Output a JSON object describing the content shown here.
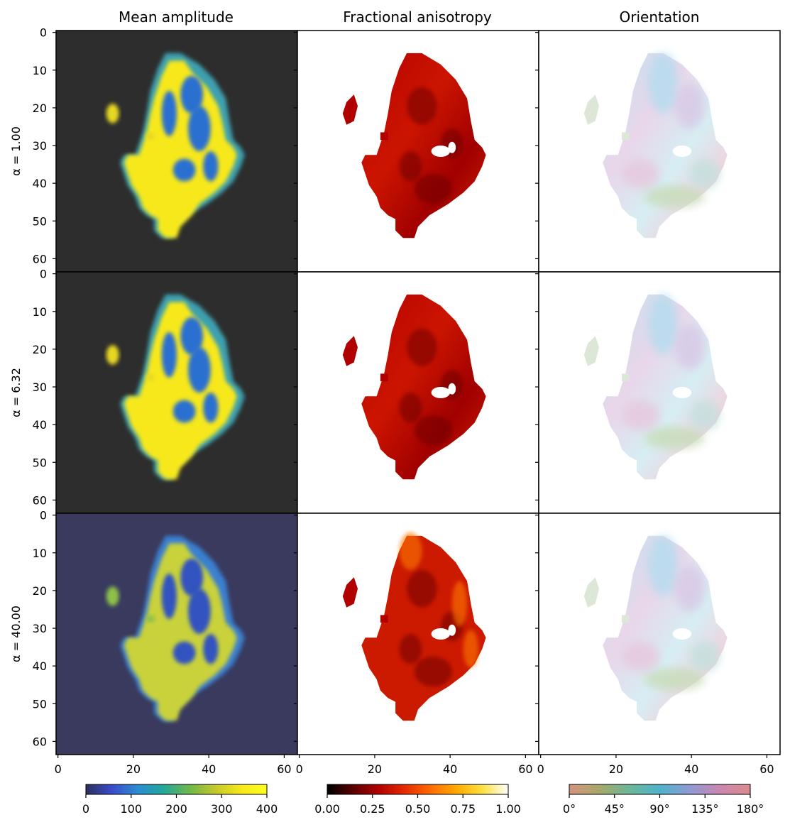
{
  "chart_data": {
    "type": "image-grid",
    "column_titles": [
      "Mean amplitude",
      "Fractional anisotropy",
      "Orientation"
    ],
    "row_labels": [
      "α = 1.00",
      "α = 6.32",
      "α = 40.00"
    ],
    "image_size": [
      64,
      64
    ],
    "x_ticks": [
      0,
      20,
      40,
      60
    ],
    "y_ticks": [
      0,
      10,
      20,
      30,
      40,
      50,
      60
    ],
    "colorbars": [
      {
        "label": "Mean amplitude",
        "range": [
          0,
          400
        ],
        "ticks": [
          "0",
          "100",
          "200",
          "300",
          "400"
        ],
        "stops": [
          "#2b2f5c",
          "#3a4bc9",
          "#2a8cd1",
          "#23a79a",
          "#6cb84a",
          "#c4c82a",
          "#f7e81a",
          "#ffff20"
        ]
      },
      {
        "label": "Fractional anisotropy",
        "range": [
          0,
          1
        ],
        "ticks": [
          "0.00",
          "0.25",
          "0.50",
          "0.75",
          "1.00"
        ],
        "stops": [
          "#000000",
          "#5a0000",
          "#b30000",
          "#e62a00",
          "#ff6a00",
          "#ffaa00",
          "#ffe040",
          "#ffffff"
        ]
      },
      {
        "label": "Orientation",
        "range": [
          0,
          180
        ],
        "ticks": [
          "0°",
          "45°",
          "90°",
          "135°",
          "180°"
        ],
        "stops": [
          "#d4927f",
          "#a7a86a",
          "#6bb797",
          "#4eb2c9",
          "#8e9ad4",
          "#cc86b0",
          "#d98b8b"
        ]
      }
    ],
    "panel_backgrounds": [
      "#2d2d2d",
      "#ffffff",
      "#ffffff"
    ],
    "row_backgrounds_col1": [
      "#2d2d2d",
      "#2d2d2d",
      "#393a5e"
    ]
  }
}
